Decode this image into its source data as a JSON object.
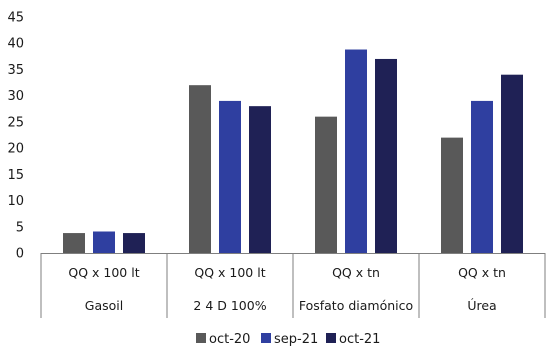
{
  "chart_data": {
    "type": "bar",
    "title": "",
    "xlabel": "",
    "ylabel": "",
    "ylim": [
      0,
      45
    ],
    "yticks": [
      0,
      5,
      10,
      15,
      20,
      25,
      30,
      35,
      40,
      45
    ],
    "grid": false,
    "legend_position": "bottom",
    "categories": [
      {
        "unit": "QQ x 100 lt",
        "name": "Gasoil"
      },
      {
        "unit": "QQ x 100 lt",
        "name": "2 4 D 100%"
      },
      {
        "unit": "QQ x tn",
        "name": "Fosfato diamónico"
      },
      {
        "unit": "QQ x tn",
        "name": "Úrea"
      }
    ],
    "series": [
      {
        "name": "oct-20",
        "color": "#595959",
        "values": [
          3.8,
          32,
          26,
          22
        ]
      },
      {
        "name": "sep-21",
        "color": "#2f3fa0",
        "values": [
          4.1,
          29,
          38.8,
          29
        ]
      },
      {
        "name": "oct-21",
        "color": "#1f2155",
        "values": [
          3.8,
          28,
          37,
          34
        ]
      }
    ]
  }
}
